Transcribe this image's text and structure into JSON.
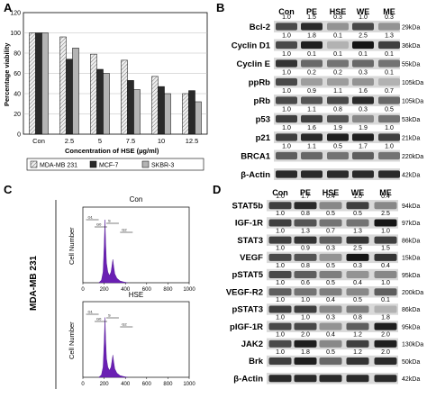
{
  "panels": {
    "a": "A",
    "b": "B",
    "c": "C",
    "d": "D"
  },
  "chart_data": {
    "type": "bar",
    "ylabel": "Percentage viability",
    "xlabel": "Concentration of HSE (µg/ml)",
    "categories": [
      "Con",
      "2.5",
      "5",
      "7.5",
      "10",
      "12.5"
    ],
    "yticks": [
      0,
      20,
      40,
      60,
      80,
      100,
      120
    ],
    "ylim": [
      0,
      120
    ],
    "legend_position": "bottom",
    "series": [
      {
        "name": "MDA-MB 231",
        "values": [
          100,
          96,
          79,
          73,
          57,
          40
        ],
        "color": "#e8e8e8",
        "pattern": "hatch"
      },
      {
        "name": "MCF-7",
        "values": [
          100,
          74,
          64,
          53,
          47,
          43
        ],
        "color": "#2a2a2a"
      },
      {
        "name": "SKBR-3",
        "values": [
          100,
          85,
          60,
          44,
          40,
          32
        ],
        "color": "#b4b4b4"
      }
    ]
  },
  "western_b": {
    "headers": [
      "Con",
      "PE",
      "HSE",
      "WE",
      "ME"
    ],
    "rows": [
      {
        "nums": [
          "1.0",
          "1.5",
          "0.3",
          "1.0",
          "0.3"
        ],
        "label": "Bcl-2",
        "kda": "29kDa",
        "intensity": [
          0.7,
          0.85,
          0.35,
          0.7,
          0.35
        ]
      },
      {
        "nums": [
          "1.0",
          "1.8",
          "0.1",
          "2.5",
          "1.3"
        ],
        "label": "Cyclin D1",
        "kda": "36kDa",
        "intensity": [
          0.7,
          0.9,
          0.2,
          0.95,
          0.75
        ]
      },
      {
        "nums": [
          "1.0",
          "0.1",
          "0.1",
          "0.1",
          "0.1"
        ],
        "label": "Cyclin E",
        "kda": "55kDa",
        "intensity": [
          0.8,
          0.55,
          0.5,
          0.55,
          0.5
        ]
      },
      {
        "nums": [
          "1.0",
          "0.2",
          "0.2",
          "0.3",
          "0.1"
        ],
        "label": "ppRb",
        "kda": "105kDa",
        "intensity": [
          0.7,
          0.3,
          0.3,
          0.35,
          0.2
        ]
      },
      {
        "nums": [
          "1.0",
          "0.9",
          "1.1",
          "1.6",
          "0.7"
        ],
        "label": "pRb",
        "kda": "105kDa",
        "intensity": [
          0.7,
          0.65,
          0.7,
          0.85,
          0.55
        ]
      },
      {
        "nums": [
          "1.0",
          "1.1",
          "0.8",
          "0.3",
          "0.5"
        ],
        "label": "p53",
        "kda": "53kDa",
        "intensity": [
          0.75,
          0.75,
          0.65,
          0.4,
          0.5
        ]
      },
      {
        "nums": [
          "1.0",
          "1.6",
          "1.9",
          "1.9",
          "1.0"
        ],
        "label": "p21",
        "kda": "21kDa",
        "intensity": [
          0.75,
          0.85,
          0.9,
          0.9,
          0.75
        ]
      },
      {
        "nums": [
          "",
          "",
          "",
          "",
          ""
        ],
        "label": "BRCA1",
        "kda": "220kDa",
        "intensity": [
          0.6,
          0.55,
          0.5,
          0.6,
          0.5
        ]
      },
      {
        "nums": [
          "",
          "",
          "",
          "",
          ""
        ],
        "label": "β-Actin",
        "kda": "42kDa",
        "intensity": [
          0.85,
          0.85,
          0.85,
          0.85,
          0.85
        ]
      }
    ],
    "brca1_nums": [
      "1.0",
      "1.1",
      "0.5",
      "1.7",
      "1.0"
    ]
  },
  "flow_c": {
    "side_label": "MDA-MB 231",
    "ylabel": "Cell Number",
    "xticks": [
      "0",
      "200",
      "400",
      "600",
      "800",
      "1000"
    ],
    "gate_labels": [
      "G1",
      "G0",
      "S",
      "G2"
    ],
    "plots": [
      {
        "title": "Con"
      },
      {
        "title": "HSE"
      }
    ]
  },
  "western_d": {
    "headers": [
      "Con",
      "PE",
      "HSE",
      "WE",
      "ME"
    ],
    "rows": [
      {
        "label": "STAT5b",
        "kda": "94kDa",
        "nums": [
          "1.0",
          "1.7",
          "0.4",
          "1.0",
          "0.4"
        ],
        "intensity": [
          0.75,
          0.85,
          0.4,
          0.75,
          0.4
        ]
      },
      {
        "label": "IGF-1R",
        "kda": "97kDa",
        "nums": [
          "1.0",
          "0.8",
          "0.5",
          "0.5",
          "2.5"
        ],
        "intensity": [
          0.75,
          0.65,
          0.5,
          0.5,
          0.95
        ]
      },
      {
        "label": "STAT3",
        "kda": "86kDa",
        "nums": [
          "1.0",
          "1.3",
          "0.7",
          "1.3",
          "1.0"
        ],
        "intensity": [
          0.75,
          0.8,
          0.6,
          0.8,
          0.75
        ]
      },
      {
        "label": "VEGF",
        "kda": "15kDa",
        "nums": [
          "1.0",
          "0.9",
          "0.3",
          "2.5",
          "1.5"
        ],
        "intensity": [
          0.7,
          0.65,
          0.35,
          0.95,
          0.8
        ]
      },
      {
        "label": "pSTAT5",
        "kda": "95kDa",
        "nums": [
          "1.0",
          "0.8",
          "0.5",
          "0.3",
          "0.4"
        ],
        "intensity": [
          0.7,
          0.6,
          0.45,
          0.35,
          0.4
        ]
      },
      {
        "label": "VEGF-R2",
        "kda": "200kDa",
        "nums": [
          "1.0",
          "0.6",
          "0.5",
          "0.4",
          "1.0"
        ],
        "intensity": [
          0.6,
          0.5,
          0.45,
          0.4,
          0.6
        ]
      },
      {
        "label": "pSTAT3",
        "kda": "86kDa",
        "nums": [
          "1.0",
          "1.0",
          "0.4",
          "0.5",
          "0.1"
        ],
        "intensity": [
          0.75,
          0.75,
          0.4,
          0.45,
          0.2
        ]
      },
      {
        "label": "pIGF-1R",
        "kda": "95kDa",
        "nums": [
          "1.0",
          "1.0",
          "0.3",
          "0.8",
          "1.8"
        ],
        "intensity": [
          0.7,
          0.7,
          0.35,
          0.6,
          0.9
        ]
      },
      {
        "label": "JAK2",
        "kda": "130kDa",
        "nums": [
          "1.0",
          "2.0",
          "0.4",
          "1.2",
          "2.0"
        ],
        "intensity": [
          0.7,
          0.9,
          0.4,
          0.75,
          0.9
        ]
      },
      {
        "label": "Brk",
        "kda": "50kDa",
        "nums": [
          "",
          "",
          "",
          "",
          ""
        ],
        "intensity": [
          0.75,
          0.9,
          0.55,
          0.8,
          0.85
        ]
      },
      {
        "label": "β-Actin",
        "kda": "42kDa",
        "nums": [
          "",
          "",
          "",
          "",
          ""
        ],
        "intensity": [
          0.85,
          0.85,
          0.85,
          0.85,
          0.85
        ]
      }
    ],
    "brk_nums": [
      "1.0",
      "1.8",
      "0.5",
      "1.2",
      "2.0"
    ]
  }
}
